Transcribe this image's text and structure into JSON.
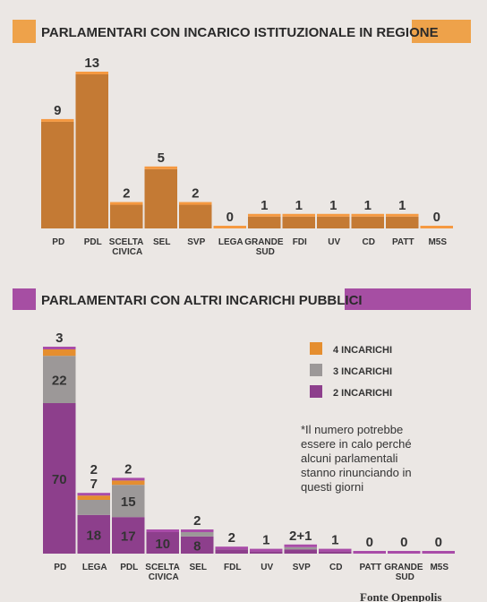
{
  "chart_data": [
    {
      "type": "bar",
      "title": "PARLAMENTARI CON INCARICO ISTITUZIONALE IN REGIONE",
      "color": "#c47a34",
      "categories": [
        "PD",
        "PDL",
        "SCELTA CIVICA",
        "SEL",
        "SVP",
        "LEGA",
        "GRANDE SUD",
        "FDI",
        "UV",
        "CD",
        "PATT",
        "M5S"
      ],
      "values": [
        9,
        13,
        2,
        5,
        2,
        0,
        1,
        1,
        1,
        1,
        1,
        0
      ]
    },
    {
      "type": "stacked_bar",
      "title": "PARLAMENTARI CON ALTRI INCARICHI PUBBLICI",
      "categories": [
        "PD",
        "LEGA",
        "PDL",
        "SCELTA CIVICA",
        "SEL",
        "FDL",
        "UV",
        "SVP",
        "CD",
        "PATT",
        "GRANDE SUD",
        "M5S"
      ],
      "series": [
        {
          "name": "2 INCARICHI",
          "color": "#8d3f8c",
          "values": [
            70,
            18,
            17,
            10,
            8,
            2,
            1,
            2,
            1,
            0,
            0,
            0
          ]
        },
        {
          "name": "3 INCARICHI",
          "color": "#9c9898",
          "values": [
            22,
            7,
            15,
            null,
            2,
            null,
            null,
            1,
            null,
            null,
            null,
            null
          ]
        },
        {
          "name": "4 INCARICHI",
          "color": "#e58e2f",
          "values": [
            3,
            2,
            2,
            null,
            null,
            null,
            null,
            null,
            null,
            null,
            null,
            null
          ]
        }
      ],
      "annotations": [
        {
          "text": "2+1",
          "category": "SVP"
        }
      ],
      "note": "*Il numero potrebbe essere in calo perché alcuni parlamentali stanno rinunciando in questi giorni",
      "source": "Fonte Openpolis"
    }
  ]
}
